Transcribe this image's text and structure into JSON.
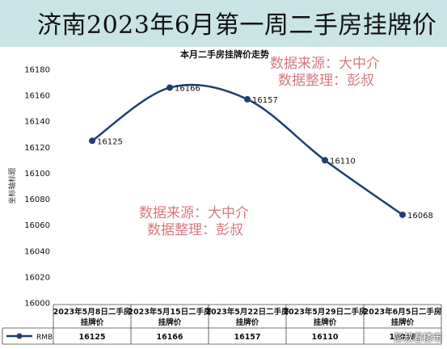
{
  "page_title": "济南2023年6月第一周二手房挂牌价",
  "watermark_top": {
    "line1": "数据来源：大中介",
    "line2": "数据整理：彭叔"
  },
  "watermark_mid": {
    "line1": "数据来源：大中介",
    "line2": "数据整理：彭叔"
  },
  "corner_watermark": "彭叔看楼市",
  "colors": {
    "header_bg": "#c9e4e5",
    "line": "#1f3f73",
    "watermark": "#d9787f"
  },
  "chart_data": {
    "type": "line",
    "title": "本月二手房挂牌价走势",
    "xlabel": "",
    "ylabel": "坐标轴标题",
    "ylim": [
      16000,
      16180
    ],
    "yticks": [
      16000,
      16020,
      16040,
      16060,
      16080,
      16100,
      16120,
      16140,
      16160,
      16180
    ],
    "grid": false,
    "categories": [
      "2023年5月8日二手房挂牌价",
      "2023年5月15日二手房挂牌价",
      "2023年5月22日二手房挂牌价",
      "2023年5月29日二手房挂牌价",
      "2023年6月5日二手房挂牌价"
    ],
    "series": [
      {
        "name": "RMB",
        "values": [
          16125,
          16166,
          16157,
          16110,
          16068
        ]
      }
    ],
    "data_table": true
  }
}
